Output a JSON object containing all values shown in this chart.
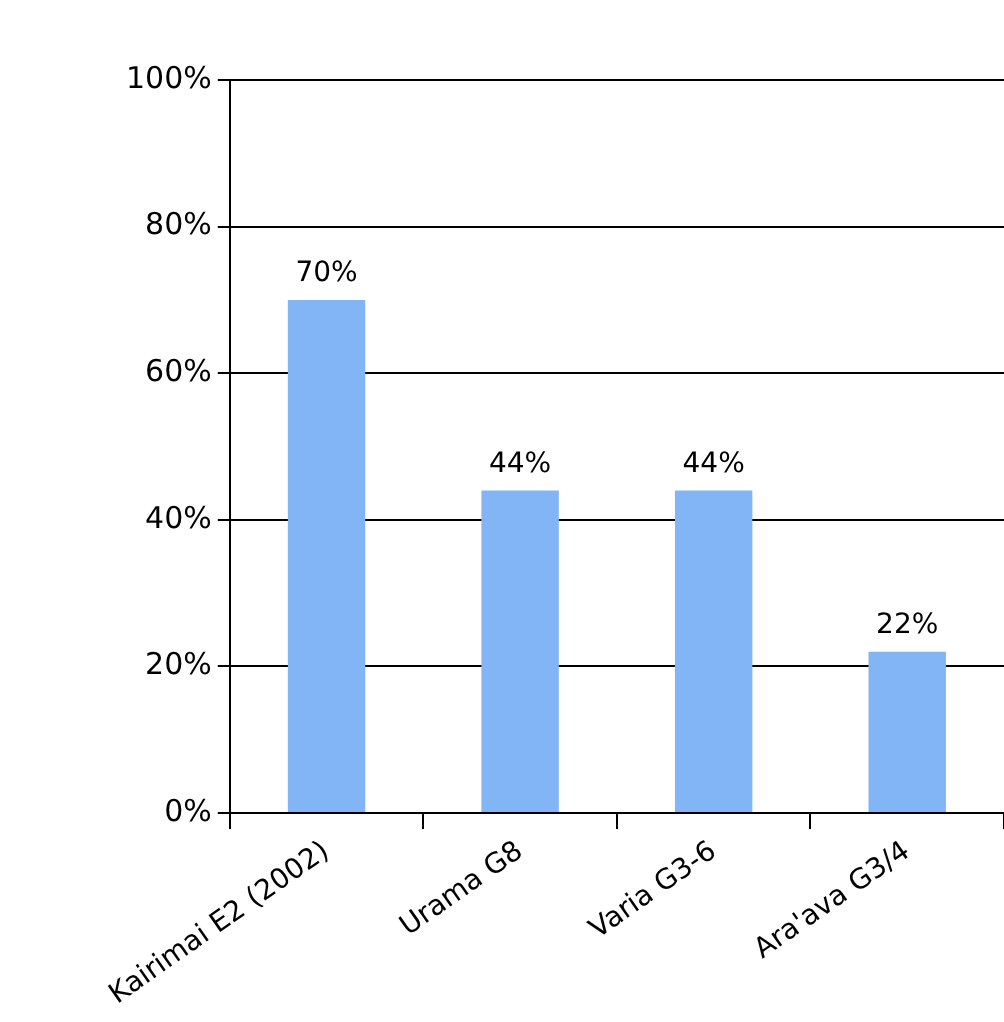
{
  "chart_data": {
    "type": "bar",
    "categories": [
      "Kairimai E2 (2002)",
      "Urama G8",
      "Varia G3-6",
      "Ara'ava G3/4"
    ],
    "values": [
      70,
      44,
      44,
      22
    ],
    "value_labels": [
      "70%",
      "44%",
      "44%",
      "22%"
    ],
    "color": "#82b5f5",
    "ylim": [
      0,
      100
    ],
    "yticks": [
      {
        "value": 0,
        "label": "0%"
      },
      {
        "value": 20,
        "label": "20%"
      },
      {
        "value": 40,
        "label": "40%"
      },
      {
        "value": 60,
        "label": "60%"
      },
      {
        "value": 80,
        "label": "80%"
      },
      {
        "value": 100,
        "label": "100%"
      }
    ],
    "grid": "y",
    "legend": false
  }
}
